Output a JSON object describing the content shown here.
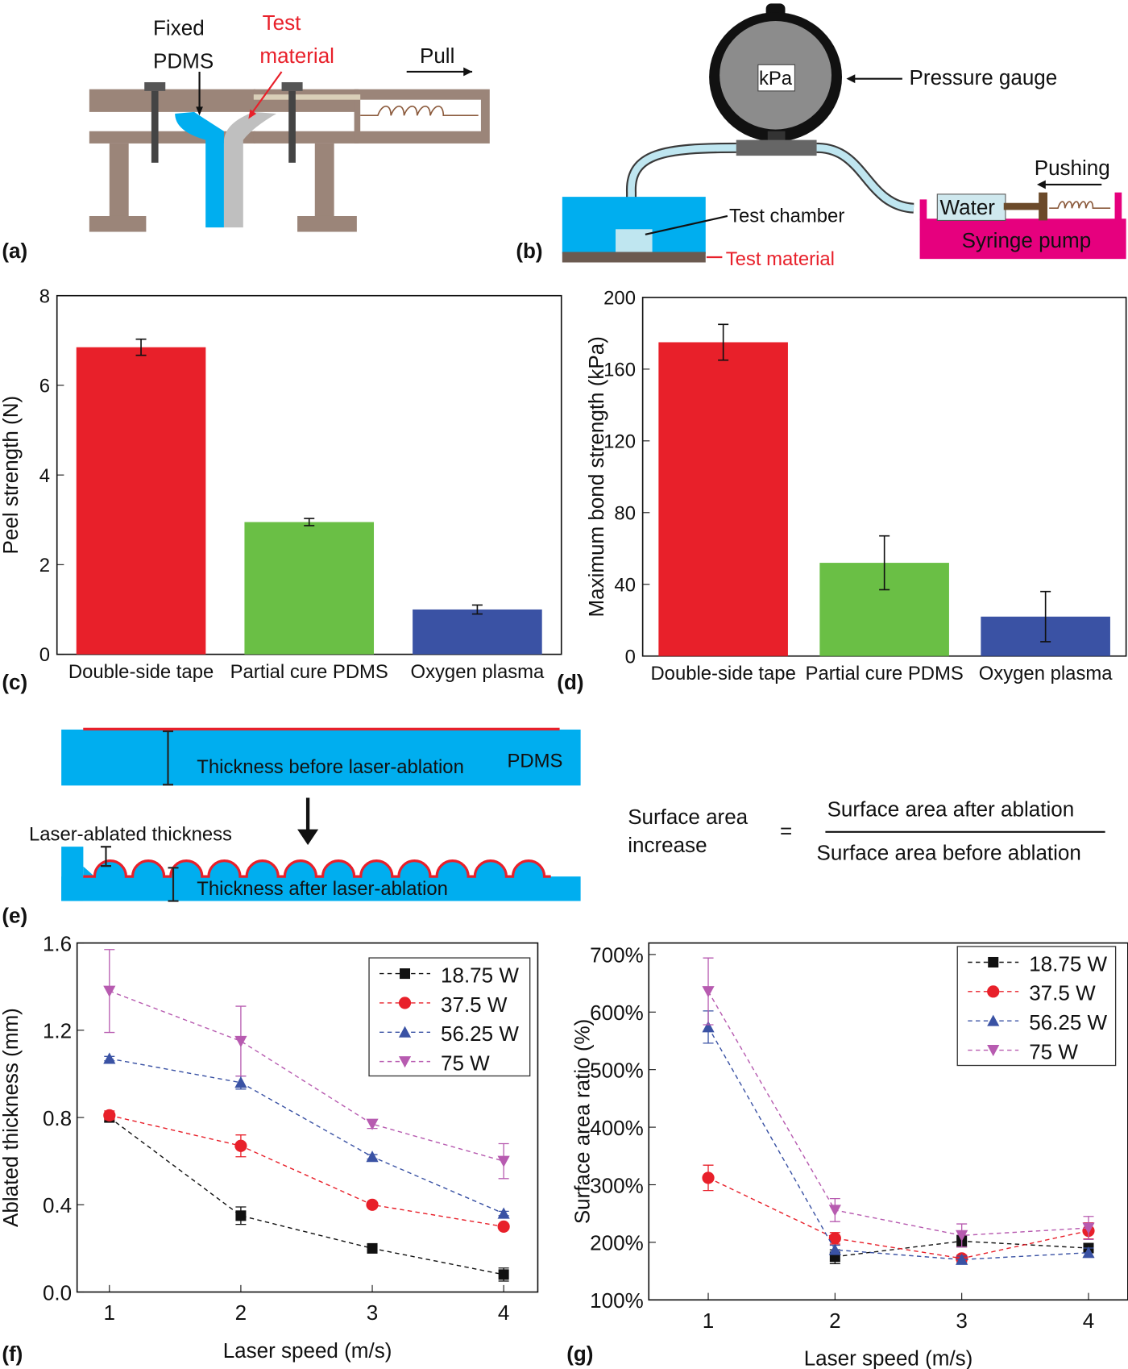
{
  "panels": {
    "a": {
      "label": "(a)",
      "fixed": "Fixed",
      "pdms": "PDMS",
      "test": "Test",
      "material": "material",
      "pull": "Pull"
    },
    "b": {
      "label": "(b)",
      "gauge_unit": "kPa",
      "pressure_gauge": "Pressure  gauge",
      "pushing": "Pushing",
      "water": "Water",
      "test_chamber": "Test chamber",
      "syringe_pump": "Syringe pump",
      "test_material": "Test material"
    },
    "c": {
      "label": "(c)"
    },
    "d": {
      "label": "(d)"
    },
    "e": {
      "label": "(e)",
      "before": "Thickness before laser-ablation",
      "pdms": "PDMS",
      "ablated": "Laser-ablated thickness",
      "after": "Thickness after laser-ablation",
      "eq_left_1": "Surface area",
      "eq_left_2": "increase",
      "eq_sign": "=",
      "numerator": "Surface area after ablation",
      "denominator": "Surface area before ablation"
    },
    "f": {
      "label": "(f)"
    },
    "g": {
      "label": "(g)"
    }
  },
  "colors": {
    "red": "#e8202a",
    "green": "#6abf45",
    "blue": "#3a52a4",
    "magenta": "#b75bb0",
    "black": "#111111",
    "cyan": "#00aeef",
    "brown": "#9b8579",
    "pink": "#e6007e"
  },
  "chart_data": [
    {
      "id": "c",
      "type": "bar",
      "categories": [
        "Double-side tape",
        "Partial cure PDMS",
        "Oxygen plasma"
      ],
      "values": [
        6.85,
        2.95,
        1.0
      ],
      "errors": [
        0.18,
        0.08,
        0.1
      ],
      "colors": [
        "#e8202a",
        "#6abf45",
        "#3a52a4"
      ],
      "xlabel": "",
      "ylabel": "Peel strength (N)",
      "ylim": [
        0,
        8
      ],
      "yticks": [
        "0",
        "2",
        "4",
        "6",
        "8"
      ]
    },
    {
      "id": "d",
      "type": "bar",
      "categories": [
        "Double-side tape",
        "Partial cure PDMS",
        "Oxygen plasma"
      ],
      "values": [
        175,
        52,
        22
      ],
      "errors": [
        10,
        15,
        14
      ],
      "colors": [
        "#e8202a",
        "#6abf45",
        "#3a52a4"
      ],
      "xlabel": "",
      "ylabel": "Maximum bond strength (kPa)",
      "ylim": [
        0,
        200
      ],
      "yticks": [
        "0",
        "40",
        "80",
        "120",
        "160",
        "200"
      ]
    },
    {
      "id": "f",
      "type": "line",
      "x": [
        1,
        2,
        3,
        4
      ],
      "xlabel": "Laser speed (m/s)",
      "ylabel": "Ablated thickness (mm)",
      "ylim": [
        0,
        1.6
      ],
      "yticks": [
        "0.0",
        "0.4",
        "0.8",
        "1.2",
        "1.6"
      ],
      "xticks": [
        "1",
        "2",
        "3",
        "4"
      ],
      "legend": "top-right",
      "series": [
        {
          "name": "18.75 W",
          "marker": "square",
          "color": "#111111",
          "values": [
            0.8,
            0.35,
            0.2,
            0.08
          ],
          "errors": [
            0.02,
            0.04,
            0.01,
            0.03
          ]
        },
        {
          "name": "37.5 W",
          "marker": "circle",
          "color": "#e8202a",
          "values": [
            0.81,
            0.67,
            0.4,
            0.3
          ],
          "errors": [
            0.02,
            0.05,
            0.01,
            0.01
          ]
        },
        {
          "name": "56.25 W",
          "marker": "triangle-up",
          "color": "#3a52a4",
          "values": [
            1.07,
            0.96,
            0.62,
            0.36
          ],
          "errors": [
            0.01,
            0.03,
            0.01,
            0.01
          ]
        },
        {
          "name": "75 W",
          "marker": "triangle-down",
          "color": "#b75bb0",
          "values": [
            1.38,
            1.15,
            0.77,
            0.6
          ],
          "errors": [
            0.19,
            0.16,
            0.02,
            0.08
          ]
        }
      ]
    },
    {
      "id": "g",
      "type": "line",
      "x": [
        1,
        2,
        3,
        4
      ],
      "xlabel": "Laser speed (m/s)",
      "ylabel": "Surface area ratio (%)",
      "ylim": [
        100,
        720
      ],
      "yticks": [
        "100%",
        "200%",
        "300%",
        "400%",
        "500%",
        "600%",
        "700%"
      ],
      "xticks": [
        "1",
        "2",
        "3",
        "4"
      ],
      "legend": "top-right",
      "series": [
        {
          "name": "18.75 W",
          "marker": "square",
          "color": "#111111",
          "values": [
            null,
            175,
            202,
            190
          ],
          "errors": [
            null,
            12,
            10,
            8
          ]
        },
        {
          "name": "37.5 W",
          "marker": "circle",
          "color": "#e8202a",
          "values": [
            312,
            207,
            172,
            220
          ],
          "errors": [
            22,
            10,
            6,
            14
          ]
        },
        {
          "name": "56.25 W",
          "marker": "triangle-up",
          "color": "#3a52a4",
          "values": [
            574,
            187,
            170,
            182
          ],
          "errors": [
            28,
            8,
            6,
            8
          ]
        },
        {
          "name": "75 W",
          "marker": "triangle-down",
          "color": "#b75bb0",
          "values": [
            636,
            256,
            212,
            225
          ],
          "errors": [
            58,
            20,
            20,
            20
          ]
        }
      ]
    }
  ]
}
